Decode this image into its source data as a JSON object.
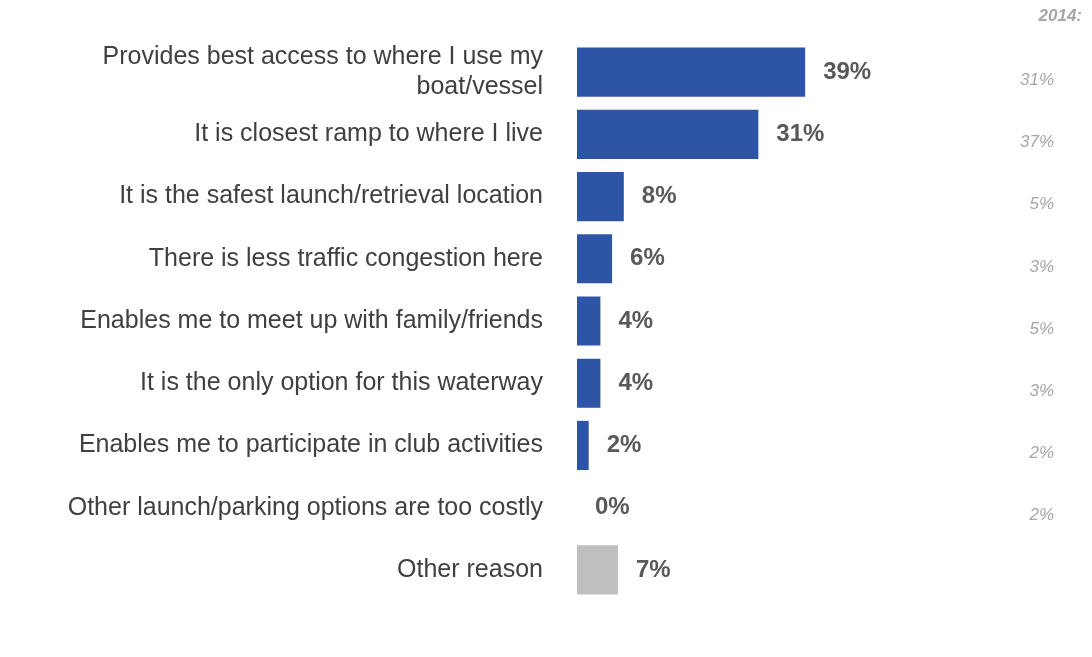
{
  "chart_data": {
    "type": "bar",
    "orientation": "horizontal",
    "categories": [
      "Provides best access to where I use my boat/vessel",
      "It is closest ramp to where I live",
      "It is the safest launch/retrieval location",
      "There is less traffic congestion here",
      "Enables me to meet up with family/friends",
      "It is the only option for this waterway",
      "Enables me to participate in club activities",
      "Other launch/parking options are too costly",
      "Other reason"
    ],
    "values": [
      39,
      31,
      8,
      6,
      4,
      4,
      2,
      0,
      7
    ],
    "colors": [
      "#2e54a6",
      "#2e54a6",
      "#2e54a6",
      "#2e54a6",
      "#2e54a6",
      "#2e54a6",
      "#2e54a6",
      "#2e54a6",
      "#bfbfbf"
    ],
    "value_labels": [
      "39%",
      "31%",
      "8%",
      "6%",
      "4%",
      "4%",
      "2%",
      "0%",
      "7%"
    ],
    "tick_labels": "y",
    "grid": false,
    "legend": false,
    "annotations": [
      "2014:",
      "31%",
      "37%",
      "5%",
      "3%",
      "5%",
      "3%",
      "2%",
      "2%"
    ]
  }
}
